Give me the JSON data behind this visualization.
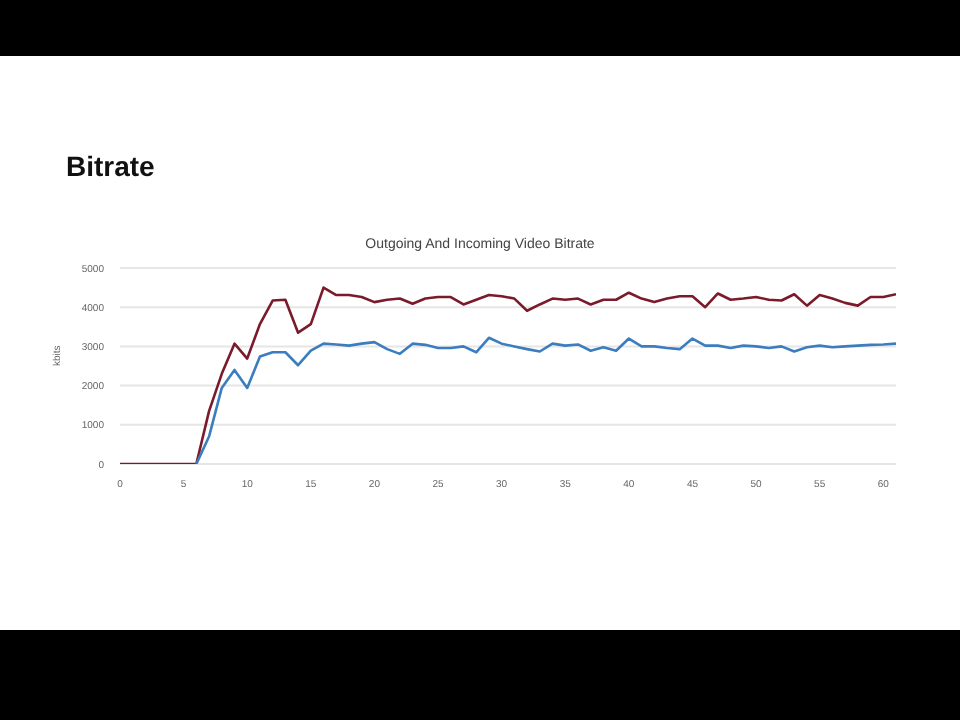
{
  "chart_data": {
    "type": "line",
    "title": "Bitrate",
    "subtitle": "Outgoing And Incoming Video Bitrate",
    "ylabel": "kbits",
    "x": [
      0,
      1,
      2,
      3,
      4,
      5,
      6,
      7,
      8,
      9,
      10,
      11,
      12,
      13,
      14,
      15,
      16,
      17,
      18,
      19,
      20,
      21,
      22,
      23,
      24,
      25,
      26,
      27,
      28,
      29,
      30,
      31,
      32,
      33,
      34,
      35,
      36,
      37,
      38,
      39,
      40,
      41,
      42,
      43,
      44,
      45,
      46,
      47,
      48,
      49,
      50,
      51,
      52,
      53,
      54,
      55,
      56,
      57,
      58,
      59,
      60,
      61
    ],
    "series": [
      {
        "color": "#7a1b2b",
        "values": [
          0,
          0,
          0,
          0,
          0,
          0,
          0,
          1350,
          2300,
          3070,
          2690,
          3570,
          4170,
          4190,
          3350,
          3570,
          4500,
          4310,
          4310,
          4260,
          4130,
          4190,
          4220,
          4090,
          4220,
          4260,
          4260,
          4070,
          4190,
          4310,
          4280,
          4220,
          3910,
          4070,
          4220,
          4190,
          4220,
          4070,
          4190,
          4190,
          4370,
          4220,
          4130,
          4220,
          4280,
          4280,
          4000,
          4350,
          4190,
          4220,
          4260,
          4190,
          4170,
          4330,
          4040,
          4310,
          4220,
          4110,
          4040,
          4260,
          4260,
          4330
        ]
      },
      {
        "color": "#3b7dbf",
        "values": [
          null,
          null,
          null,
          null,
          null,
          null,
          0,
          700,
          1940,
          2400,
          1940,
          2740,
          2850,
          2850,
          2520,
          2890,
          3070,
          3050,
          3020,
          3070,
          3110,
          2930,
          2810,
          3070,
          3040,
          2960,
          2960,
          3000,
          2850,
          3220,
          3070,
          3000,
          2930,
          2870,
          3070,
          3020,
          3050,
          2890,
          2980,
          2890,
          3200,
          3000,
          3000,
          2960,
          2930,
          3200,
          3020,
          3020,
          2960,
          3020,
          3000,
          2960,
          3000,
          2870,
          2980,
          3020,
          2980,
          3000,
          3020,
          3040,
          3050,
          3070
        ]
      }
    ],
    "xlim": [
      0,
      61
    ],
    "xticks": [
      0,
      5,
      10,
      15,
      20,
      25,
      30,
      35,
      40,
      45,
      50,
      55,
      60
    ],
    "ylim": [
      0,
      5000
    ],
    "yticks": [
      0,
      1000,
      2000,
      3000,
      4000,
      5000
    ],
    "grid": "y",
    "legend": false,
    "marker": "none",
    "line_style": "solid"
  }
}
